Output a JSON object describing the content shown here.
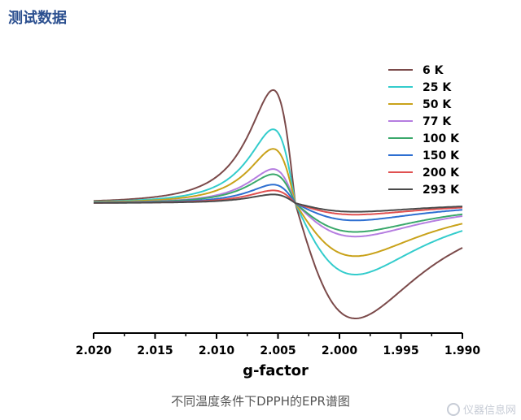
{
  "header": {
    "title": "测试数据"
  },
  "caption": "不同温度条件下DPPH的EPR谱图",
  "watermark": {
    "text": "仪器信息网",
    "icon": "logo-icon"
  },
  "chart_data": {
    "type": "line",
    "title": "",
    "xlabel": "g-factor",
    "ylabel": "",
    "x_reversed": true,
    "xlim": [
      2.02,
      1.99
    ],
    "x_ticks": [
      "2.020",
      "2.015",
      "2.010",
      "2.005",
      "2.000",
      "1.995",
      "1.990"
    ],
    "y_axis_visible": false,
    "grid": false,
    "legend_position": "top-right",
    "line_center_g": 2.0036,
    "peak_position_g": 2.0054,
    "trough_position_g": 1.9987,
    "series": [
      {
        "name": "6 K",
        "color": "#7b4a4a",
        "max": 0.98,
        "min": -1.0
      },
      {
        "name": "25 K",
        "color": "#33cccc",
        "max": 0.64,
        "min": -0.62
      },
      {
        "name": "50 K",
        "color": "#c9a21a",
        "max": 0.47,
        "min": -0.46
      },
      {
        "name": "77 K",
        "color": "#b57de0",
        "max": 0.295,
        "min": -0.29
      },
      {
        "name": "100 K",
        "color": "#3aa86b",
        "max": 0.25,
        "min": -0.25
      },
      {
        "name": "150 K",
        "color": "#2e6fd1",
        "max": 0.16,
        "min": -0.15
      },
      {
        "name": "200 K",
        "color": "#e05050",
        "max": 0.11,
        "min": -0.1
      },
      {
        "name": "293 K",
        "color": "#4a4a4a",
        "max": 0.075,
        "min": -0.075
      }
    ]
  }
}
